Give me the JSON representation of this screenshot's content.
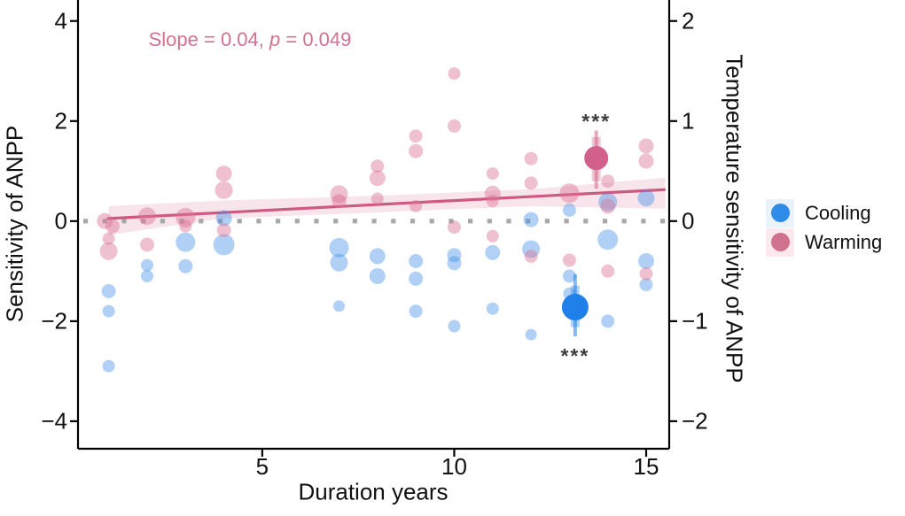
{
  "figure": {
    "annotation": {
      "prefix": "Slope = 0.04, ",
      "italic_var": "p",
      "suffix": " = 0.049",
      "color": "#d4718f"
    },
    "axes": {
      "x": {
        "title": "Duration years",
        "ticks": [
          {
            "at": 5,
            "label": "5"
          },
          {
            "at": 10,
            "label": "10"
          },
          {
            "at": 15,
            "label": "15"
          }
        ]
      },
      "y_left": {
        "title": "Sensitivity of ANPP",
        "ticks": [
          {
            "at": 4,
            "label": "4"
          },
          {
            "at": 2,
            "label": "2"
          },
          {
            "at": 0,
            "label": "0"
          },
          {
            "at": -2,
            "label": "−2"
          },
          {
            "at": -4,
            "label": "−4"
          }
        ]
      },
      "y_right": {
        "title": "Temperature sensitivity of ANPP",
        "ticks": [
          {
            "at": 4,
            "label": "2"
          },
          {
            "at": 2,
            "label": "1"
          },
          {
            "at": 0,
            "label": "0"
          },
          {
            "at": -2,
            "label": "−1"
          },
          {
            "at": -4,
            "label": "−2"
          }
        ]
      }
    },
    "legend": [
      {
        "label": "Cooling",
        "color": "#2f8ce8",
        "key_bg": "#eaf2fc"
      },
      {
        "label": "Warming",
        "color": "#d0718e",
        "key_bg": "#fbe9ee"
      }
    ]
  },
  "chart_data": {
    "type": "scatter",
    "xlabel": "Duration years",
    "ylabel_left": "Sensitivity of ANPP",
    "ylabel_right": "Temperature sensitivity of ANPP",
    "xlim": [
      0.2,
      15.6
    ],
    "ylim": [
      -4.55,
      4.42
    ],
    "right_axis_scale": 0.5,
    "grid": false,
    "zero_line": {
      "y": 0,
      "style": "square-dotted",
      "color": "#a8a8a8",
      "size": 5.2,
      "spacing": 21.7
    },
    "regression": {
      "slope": 0.04,
      "p_value": 0.049,
      "color": "#cf5a80",
      "band_color": "#f8e4eb",
      "x_range": [
        0.95,
        15.5
      ],
      "y_start": 0.05,
      "y_end": 0.63,
      "band": {
        "x": [
          1.0,
          3.9,
          8.1,
          12.0,
          15.5
        ],
        "upper": [
          0.3,
          0.41,
          0.51,
          0.64,
          0.87
        ],
        "lower": [
          -0.28,
          0.05,
          0.18,
          0.3,
          0.25
        ]
      }
    },
    "series": [
      {
        "name": "Cooling",
        "color": "#4292e7",
        "opacity": 0.42,
        "points": [
          [
            1,
            -1.4,
            8
          ],
          [
            1,
            -1.8,
            7
          ],
          [
            1,
            -2.9,
            7
          ],
          [
            2,
            -0.88,
            7
          ],
          [
            2,
            -1.1,
            7
          ],
          [
            3,
            -0.42,
            11
          ],
          [
            3,
            -0.9,
            8
          ],
          [
            4,
            0.06,
            9
          ],
          [
            4,
            -0.47,
            12
          ],
          [
            7,
            -0.53,
            11
          ],
          [
            7,
            -0.83,
            10
          ],
          [
            7,
            -1.7,
            6.5
          ],
          [
            8,
            -0.7,
            9
          ],
          [
            8,
            -1.1,
            9
          ],
          [
            9,
            -0.8,
            8
          ],
          [
            9,
            -1.15,
            8
          ],
          [
            9,
            -1.8,
            7.5
          ],
          [
            10,
            -0.68,
            8
          ],
          [
            10,
            -0.84,
            8
          ],
          [
            10,
            -2.1,
            7
          ],
          [
            11,
            -0.63,
            8.5
          ],
          [
            11,
            -1.75,
            7
          ],
          [
            12,
            0.03,
            8.5
          ],
          [
            12,
            -0.56,
            10
          ],
          [
            12,
            -2.27,
            6.5
          ],
          [
            13,
            0.22,
            7.5
          ],
          [
            13,
            -1.1,
            7.5
          ],
          [
            13,
            -1.45,
            7
          ],
          [
            14,
            0.38,
            10.5
          ],
          [
            14,
            -0.37,
            11.5
          ],
          [
            14,
            -2.0,
            7.5
          ],
          [
            15,
            0.46,
            9.5
          ],
          [
            15,
            -0.8,
            9
          ],
          [
            15,
            -1.27,
            7.5
          ]
        ],
        "mean": {
          "x": 13.15,
          "y": -1.72,
          "ci": [
            -2.3,
            -1.06
          ],
          "thick": [
            -2.12,
            -1.29
          ],
          "r": 15,
          "color": "#1e80e8",
          "sig": "***",
          "sig_y": -2.62
        }
      },
      {
        "name": "Warming",
        "color": "#dc7397",
        "opacity": 0.45,
        "points": [
          [
            0.9,
            0.0,
            9
          ],
          [
            1.1,
            -0.1,
            8
          ],
          [
            1,
            -0.35,
            7
          ],
          [
            1,
            -0.6,
            10
          ],
          [
            2,
            0.1,
            10
          ],
          [
            2,
            -0.47,
            8
          ],
          [
            3,
            0.07,
            11
          ],
          [
            3,
            -0.1,
            7
          ],
          [
            4,
            0.95,
            9
          ],
          [
            4,
            0.62,
            10
          ],
          [
            4,
            -0.18,
            8
          ],
          [
            7,
            0.54,
            10
          ],
          [
            7,
            0.4,
            8
          ],
          [
            8,
            1.1,
            7.5
          ],
          [
            8,
            0.86,
            9
          ],
          [
            8,
            0.45,
            7
          ],
          [
            9,
            1.7,
            7.5
          ],
          [
            9,
            1.4,
            8
          ],
          [
            9,
            0.3,
            7
          ],
          [
            10,
            2.95,
            7
          ],
          [
            10,
            1.9,
            7.5
          ],
          [
            10,
            -0.12,
            7.5
          ],
          [
            11,
            0.95,
            7
          ],
          [
            11,
            0.55,
            9
          ],
          [
            11,
            0.4,
            7
          ],
          [
            11,
            -0.3,
            7
          ],
          [
            12,
            1.25,
            7.5
          ],
          [
            12,
            0.76,
            7.5
          ],
          [
            12,
            -0.7,
            7.5
          ],
          [
            13,
            0.56,
            11
          ],
          [
            13,
            -0.78,
            7.5
          ],
          [
            14,
            0.8,
            7.5
          ],
          [
            14,
            0.3,
            8.5
          ],
          [
            14,
            -1.0,
            7.5
          ],
          [
            15,
            1.5,
            8.5
          ],
          [
            15,
            1.2,
            8.5
          ],
          [
            15,
            -1.05,
            7.5
          ]
        ],
        "mean": {
          "x": 13.7,
          "y": 1.26,
          "ci": [
            0.65,
            1.81
          ],
          "thick": [
            0.8,
            1.68
          ],
          "r": 13.5,
          "color": "#d2608a",
          "sig": "***",
          "sig_y": 2.07
        }
      }
    ]
  }
}
